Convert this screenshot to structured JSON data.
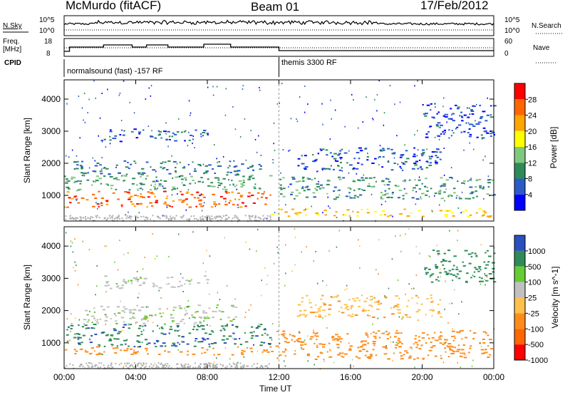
{
  "header": {
    "station": "McMurdo (fitACF)",
    "beam": "Beam 01",
    "date": "17/Feb/2012"
  },
  "top_panel": {
    "nsky_label": "N.Sky",
    "nsky_ticks": [
      "10^5",
      "10^0"
    ],
    "nsearch_label": "N.Search",
    "nsearch_ticks": [
      "10^5",
      "10^0"
    ],
    "freq_label_1": "Freq.",
    "freq_label_2": "[MHz]",
    "freq_ticks": [
      "18",
      "8"
    ],
    "nave_label": "Nave",
    "nave_ticks": [
      "60",
      "0"
    ],
    "cpid_label": "CPID",
    "cpid_segments": [
      "normalsound (fast) -157 RF",
      "themis 3300 RF"
    ]
  },
  "x_axis": {
    "label": "Time UT",
    "ticks": [
      "00:00",
      "04:00",
      "08:00",
      "12:00",
      "16:00",
      "20:00",
      "00:00"
    ]
  },
  "chart_data": [
    {
      "type": "heatmap",
      "title": "Power",
      "xlabel": "Time UT",
      "ylabel": "Slant Range [km]",
      "x_ticks": [
        "00:00",
        "04:00",
        "08:00",
        "12:00",
        "16:00",
        "20:00",
        "00:00"
      ],
      "y_ticks": [
        1000,
        2000,
        3000,
        4000
      ],
      "ylim": [
        200,
        4600
      ],
      "colorbar_label": "Power [dB]",
      "colorbar_ticks": [
        4,
        8,
        12,
        16,
        20,
        24,
        28
      ],
      "colorbar_colors": [
        "#0000ff",
        "#2a5cc8",
        "#2e8b57",
        "#7fc97f",
        "#ffff00",
        "#ffa500",
        "#ff6600",
        "#ff0000"
      ],
      "bands": [
        {
          "t0": 0.0,
          "t1": 11.5,
          "r0": 650,
          "r1": 1150,
          "value": 26
        },
        {
          "t0": 0.0,
          "t1": 11.5,
          "r0": 1150,
          "r1": 1650,
          "value": 12
        },
        {
          "t0": 0.5,
          "t1": 11.0,
          "r0": 1650,
          "r1": 2100,
          "value": 8
        },
        {
          "t0": 2.0,
          "t1": 8.0,
          "r0": 2700,
          "r1": 3100,
          "value": 6
        },
        {
          "t0": 11.5,
          "t1": 23.8,
          "r0": 350,
          "r1": 600,
          "value": 20
        },
        {
          "t0": 12.0,
          "t1": 24.0,
          "r0": 900,
          "r1": 1600,
          "value": 10
        },
        {
          "t0": 13.0,
          "t1": 21.0,
          "r0": 1800,
          "r1": 2500,
          "value": 6
        },
        {
          "t0": 20.0,
          "t1": 24.0,
          "r0": 2800,
          "r1": 3900,
          "value": 5
        }
      ]
    },
    {
      "type": "heatmap",
      "title": "Velocity",
      "xlabel": "Time UT",
      "ylabel": "Slant Range [km]",
      "x_ticks": [
        "00:00",
        "04:00",
        "08:00",
        "12:00",
        "16:00",
        "20:00",
        "00:00"
      ],
      "y_ticks": [
        1000,
        2000,
        3000,
        4000
      ],
      "ylim": [
        200,
        4600
      ],
      "colorbar_label": "Velocity [m s^-1]",
      "colorbar_ticks": [
        1000,
        500,
        100,
        25,
        -25,
        -100,
        -500,
        -1000
      ],
      "colorbar_colors": [
        "#2a4fbf",
        "#2e8b57",
        "#66cc33",
        "#c0c0c0",
        "#ffc04d",
        "#ff8c1a",
        "#ff6600",
        "#ff0000"
      ],
      "bands": [
        {
          "t0": 0.0,
          "t1": 11.5,
          "r0": 650,
          "r1": 900,
          "value": -300
        },
        {
          "t0": 0.0,
          "t1": 11.5,
          "r0": 900,
          "r1": 1600,
          "value": 400
        },
        {
          "t0": 1.0,
          "t1": 10.0,
          "r0": 1600,
          "r1": 2200,
          "value": 15
        },
        {
          "t0": 2.0,
          "t1": 8.0,
          "r0": 2700,
          "r1": 3100,
          "value": 10
        },
        {
          "t0": 11.5,
          "t1": 24.0,
          "r0": 500,
          "r1": 1400,
          "value": -200
        },
        {
          "t0": 13.0,
          "t1": 21.0,
          "r0": 1800,
          "r1": 2500,
          "value": -80
        },
        {
          "t0": 20.0,
          "t1": 24.0,
          "r0": 2900,
          "r1": 3900,
          "value": 300
        }
      ]
    }
  ]
}
